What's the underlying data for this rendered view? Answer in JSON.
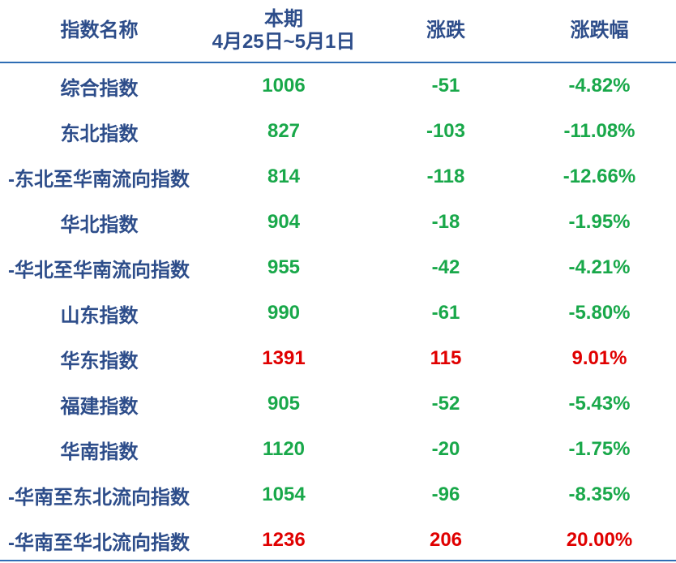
{
  "header": {
    "name": "指数名称",
    "current_line1": "本期",
    "current_line2": "4月25日~5月1日",
    "change": "涨跌",
    "change_pct": "涨跌幅"
  },
  "colors": {
    "header_text": "#2d4d8a",
    "rule": "#2e6db4",
    "down": "#19a84a",
    "up": "#e00000"
  },
  "rows": [
    {
      "name": "综合指数",
      "value": "1006",
      "change": "-51",
      "pct": "-4.82%",
      "trend": "down",
      "sub": false
    },
    {
      "name": "东北指数",
      "value": "827",
      "change": "-103",
      "pct": "-11.08%",
      "trend": "down",
      "sub": false
    },
    {
      "name": "-东北至华南流向指数",
      "value": "814",
      "change": "-118",
      "pct": "-12.66%",
      "trend": "down",
      "sub": true
    },
    {
      "name": "华北指数",
      "value": "904",
      "change": "-18",
      "pct": "-1.95%",
      "trend": "down",
      "sub": false
    },
    {
      "name": "-华北至华南流向指数",
      "value": "955",
      "change": "-42",
      "pct": "-4.21%",
      "trend": "down",
      "sub": true
    },
    {
      "name": "山东指数",
      "value": "990",
      "change": "-61",
      "pct": "-5.80%",
      "trend": "down",
      "sub": false
    },
    {
      "name": "华东指数",
      "value": "1391",
      "change": "115",
      "pct": "9.01%",
      "trend": "up",
      "sub": false
    },
    {
      "name": "福建指数",
      "value": "905",
      "change": "-52",
      "pct": "-5.43%",
      "trend": "down",
      "sub": false
    },
    {
      "name": "华南指数",
      "value": "1120",
      "change": "-20",
      "pct": "-1.75%",
      "trend": "down",
      "sub": false
    },
    {
      "name": "-华南至东北流向指数",
      "value": "1054",
      "change": "-96",
      "pct": "-8.35%",
      "trend": "down",
      "sub": true
    },
    {
      "name": "-华南至华北流向指数",
      "value": "1236",
      "change": "206",
      "pct": "20.00%",
      "trend": "up",
      "sub": true
    }
  ]
}
